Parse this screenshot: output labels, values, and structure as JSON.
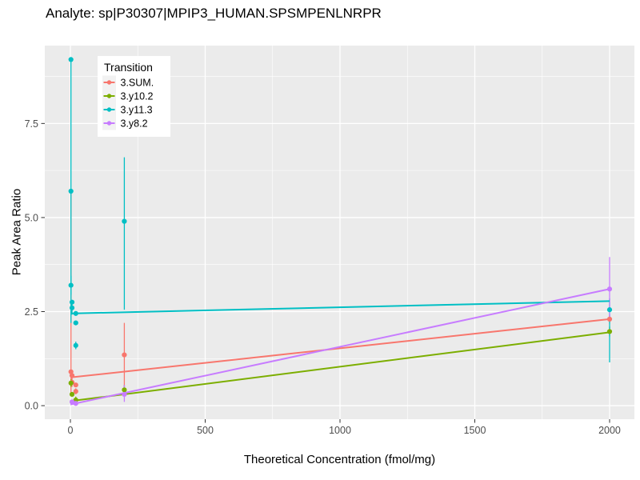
{
  "chart_data": {
    "type": "scatter",
    "title": "Analyte: sp|P30307|MPIP3_HUMAN.SPSMPENLNRPR",
    "xlabel": "Theoretical Concentration (fmol/mg)",
    "ylabel": "Peak Area Ratio",
    "xlim": [
      -95,
      2092
    ],
    "ylim": [
      -0.36,
      9.57
    ],
    "xticks": [
      0,
      500,
      1000,
      1500,
      2000
    ],
    "xtick_labels": [
      "0",
      "500",
      "1000",
      "1500",
      "2000"
    ],
    "yticks": [
      0,
      2.5,
      5,
      7.5
    ],
    "ytick_labels": [
      "0.0",
      "2.5",
      "5.0",
      "7.5"
    ],
    "xminor": [
      250,
      750,
      1250,
      1750
    ],
    "yminor": [
      1.25,
      3.75,
      6.25,
      8.75
    ],
    "grid": true,
    "panel_bg": "#EBEBEB",
    "grid_color": "#FFFFFF",
    "tick_label_color": "#4D4D4D",
    "legend": {
      "title": "Transition",
      "position": "top-left-inside",
      "bg": "#FFFFFF",
      "key_bg": "#F2F2F2"
    },
    "series": [
      {
        "name": "3.SUM.",
        "color": "#F8766D",
        "trend": {
          "x0": 0,
          "y0": 0.75,
          "x1": 2000,
          "y1": 2.3
        },
        "points": [
          {
            "x": 2,
            "y": 0.9,
            "lo": 0.35,
            "hi": 5.7
          },
          {
            "x": 6,
            "y": 0.8
          },
          {
            "x": 6,
            "y": 0.62,
            "lo": 0.5,
            "hi": 0.74
          },
          {
            "x": 20,
            "y": 0.55
          },
          {
            "x": 20,
            "y": 0.38,
            "lo": 0.3,
            "hi": 0.46
          },
          {
            "x": 200,
            "y": 1.35,
            "lo": 0.5,
            "hi": 2.2
          },
          {
            "x": 2000,
            "y": 2.3,
            "lo": 2.18,
            "hi": 2.42
          }
        ]
      },
      {
        "name": "3.y10.2",
        "color": "#7CAE00",
        "trend": {
          "x0": 0,
          "y0": 0.12,
          "x1": 2000,
          "y1": 1.95
        },
        "points": [
          {
            "x": 2,
            "y": 0.6,
            "lo": 0.5,
            "hi": 0.7
          },
          {
            "x": 6,
            "y": 0.3
          },
          {
            "x": 20,
            "y": 0.15,
            "lo": 0.06,
            "hi": 0.24
          },
          {
            "x": 200,
            "y": 0.42,
            "lo": 0.3,
            "hi": 0.54
          },
          {
            "x": 2000,
            "y": 1.97,
            "lo": 1.84,
            "hi": 2.1
          }
        ]
      },
      {
        "name": "3.y11.3",
        "color": "#00BFC4",
        "trend": {
          "x0": 0,
          "y0": 2.45,
          "x1": 2000,
          "y1": 2.78
        },
        "points": [
          {
            "x": 2,
            "y": 9.2
          },
          {
            "x": 2,
            "y": 5.7,
            "lo": 2.2,
            "hi": 9.2
          },
          {
            "x": 2,
            "y": 3.2,
            "lo": 2.95,
            "hi": 3.45
          },
          {
            "x": 6,
            "y": 2.75
          },
          {
            "x": 6,
            "y": 2.6,
            "lo": 2.42,
            "hi": 2.78
          },
          {
            "x": 20,
            "y": 2.45
          },
          {
            "x": 20,
            "y": 2.2
          },
          {
            "x": 20,
            "y": 1.6,
            "lo": 1.5,
            "hi": 1.7
          },
          {
            "x": 200,
            "y": 4.9,
            "lo": 2.55,
            "hi": 6.6
          },
          {
            "x": 2000,
            "y": 2.55,
            "lo": 1.15,
            "hi": 2.85
          }
        ]
      },
      {
        "name": "3.y8.2",
        "color": "#C77CFF",
        "trend": {
          "x0": 0,
          "y0": 0.03,
          "x1": 2000,
          "y1": 3.1
        },
        "points": [
          {
            "x": 6,
            "y": 0.1
          },
          {
            "x": 20,
            "y": 0.06,
            "lo": 0.0,
            "hi": 0.12
          },
          {
            "x": 200,
            "y": 0.3,
            "lo": 0.1,
            "hi": 0.55
          },
          {
            "x": 2000,
            "y": 3.1,
            "lo": 2.3,
            "hi": 3.95
          }
        ]
      }
    ]
  }
}
